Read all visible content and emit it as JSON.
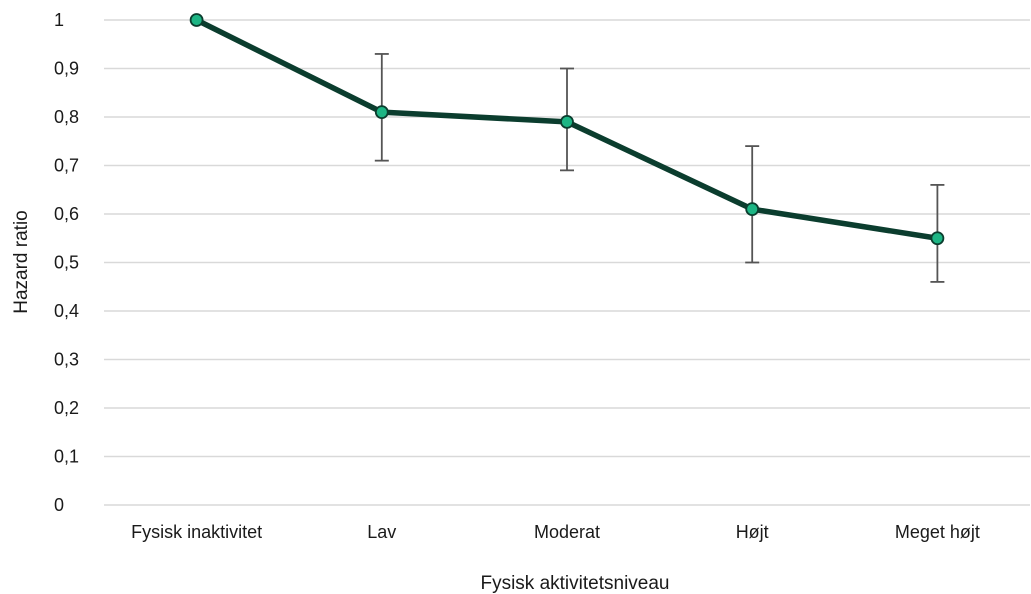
{
  "chart_data": {
    "type": "line",
    "title": "",
    "xlabel": "Fysisk aktivitetsniveau",
    "ylabel": "Hazard ratio",
    "categories": [
      "Fysisk inaktivitet",
      "Lav",
      "Moderat",
      "Højt",
      "Meget højt"
    ],
    "series": [
      {
        "values": [
          1.0,
          0.81,
          0.79,
          0.61,
          0.55
        ],
        "error_low": [
          null,
          0.71,
          0.69,
          0.5,
          0.46
        ],
        "error_high": [
          null,
          0.93,
          0.9,
          0.74,
          0.66
        ]
      }
    ],
    "ylim": [
      0,
      1
    ],
    "yticks": [
      0,
      0.1,
      0.2,
      0.3,
      0.4,
      0.5,
      0.6,
      0.7,
      0.8,
      0.9,
      1
    ],
    "ytick_labels": [
      "0",
      "0,1",
      "0,2",
      "0,3",
      "0,4",
      "0,5",
      "0,6",
      "0,7",
      "0,8",
      "0,9",
      "1"
    ],
    "grid": true,
    "legend": "none",
    "colors": {
      "line": "#0b3d2e",
      "marker_fill": "#1db584",
      "marker_stroke": "#0b3d2e",
      "error_bar": "#555555",
      "grid": "#d9d9d9"
    }
  }
}
